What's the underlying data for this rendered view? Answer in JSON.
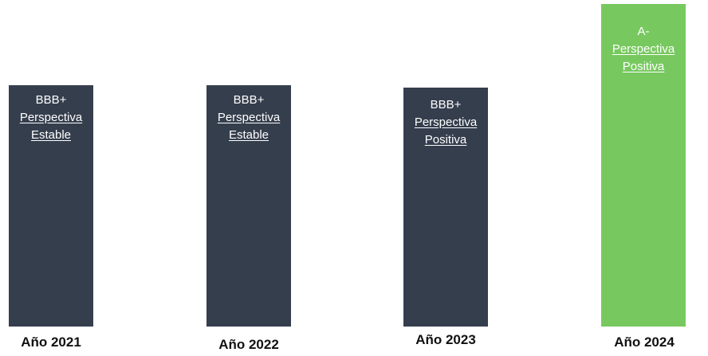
{
  "bars": [
    {
      "rating": "BBB+",
      "perspective": "Perspectiva",
      "outlook": "Estable",
      "year": "Año 2021"
    },
    {
      "rating": "BBB+",
      "perspective": "Perspectiva",
      "outlook": "Estable",
      "year": "Año 2022"
    },
    {
      "rating": "BBB+",
      "perspective": "Perspectiva",
      "outlook": "Positiva",
      "year": "Año 2023"
    },
    {
      "rating": "A-",
      "perspective": "Perspectiva",
      "outlook": "Positiva",
      "year": "Año 2024"
    }
  ]
}
